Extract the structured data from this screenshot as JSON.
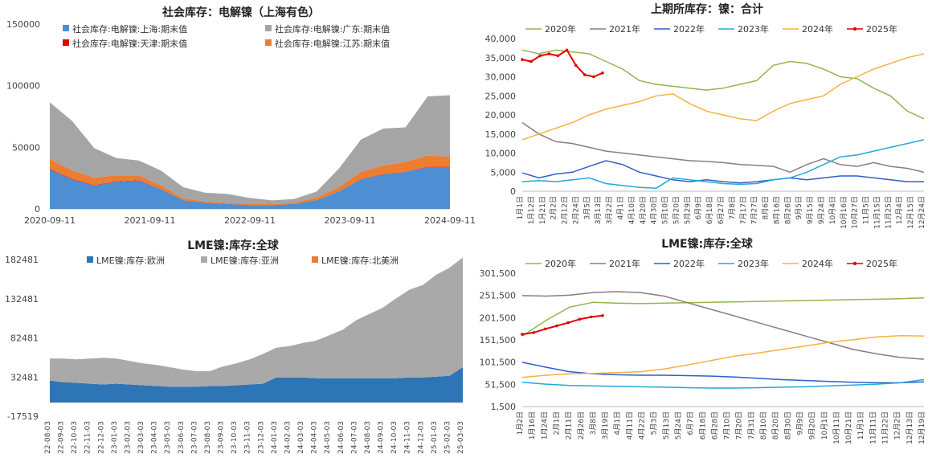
{
  "chart_data": [
    {
      "id": "c1",
      "type": "area",
      "stacked": true,
      "title": "社会库存：电解镍（上海有色）",
      "yticks": [
        "0",
        "50000",
        "100000",
        "150000"
      ],
      "xticks": [
        "2020-09-11",
        "2021-09-11",
        "2022-09-11",
        "2023-09-11",
        "2024-09-11"
      ],
      "ylim": [
        0,
        150000
      ],
      "x": [
        "2020-09",
        "2020-12",
        "2021-03",
        "2021-06",
        "2021-09",
        "2021-12",
        "2022-03",
        "2022-06",
        "2022-09",
        "2022-12",
        "2023-03",
        "2023-06",
        "2023-09",
        "2023-12",
        "2024-03",
        "2024-06",
        "2024-09",
        "2024-12",
        "2025-02"
      ],
      "series": [
        {
          "name": "社会库存:电解镍:上海:期末值",
          "color": "#4e8fd4",
          "values": [
            32000,
            24000,
            19000,
            22000,
            23000,
            16000,
            7000,
            5000,
            4000,
            3000,
            3000,
            4000,
            7000,
            14000,
            24000,
            28000,
            30000,
            34000,
            34000
          ]
        },
        {
          "name": "社会库存:电解镍:天津:期末值",
          "color": "#e00000",
          "values": [
            500,
            400,
            300,
            300,
            300,
            200,
            100,
            100,
            100,
            100,
            100,
            100,
            100,
            100,
            200,
            200,
            200,
            300,
            300
          ]
        },
        {
          "name": "社会库存:电解镍:江苏:期末值",
          "color": "#ed7d31",
          "values": [
            8000,
            7000,
            6000,
            5000,
            4000,
            3000,
            1500,
            1000,
            1000,
            800,
            800,
            1000,
            2000,
            3500,
            6000,
            7000,
            8000,
            9000,
            8000
          ]
        },
        {
          "name": "社会库存:电解镍:广东:期末值",
          "color": "#a5a5a5",
          "values": [
            46000,
            40000,
            24000,
            14000,
            12000,
            12000,
            9000,
            7000,
            7000,
            5000,
            3000,
            3000,
            5000,
            15000,
            26000,
            30000,
            28000,
            48000,
            50000
          ]
        }
      ]
    },
    {
      "id": "c2",
      "type": "line",
      "title": "上期所库存：镍：合计",
      "yticks": [
        "0",
        "5,000",
        "10,000",
        "15,000",
        "20,000",
        "25,000",
        "30,000",
        "35,000",
        "40,000"
      ],
      "ylim": [
        0,
        40000
      ],
      "xticks": [
        "1月1日",
        "1月12日",
        "1月21日",
        "2月2日",
        "2月12日",
        "2月24日",
        "3月5日",
        "3月13日",
        "3月22日",
        "4月1日",
        "4月10日",
        "4月20日",
        "4月30日",
        "5月10日",
        "5月20日",
        "5月29日",
        "6月9日",
        "6月18日",
        "6月27日",
        "7月8日",
        "7月17日",
        "7月27日",
        "8月6日",
        "8月16日",
        "8月26日",
        "9月5日",
        "9月15日",
        "9月24日",
        "10月4日",
        "10月16日",
        "10月27日",
        "11月5日",
        "11月15日",
        "11月25日",
        "12月4日",
        "12月15日",
        "12月24日"
      ],
      "series": [
        {
          "name": "2020年",
          "color": "#92b64b",
          "values": [
            37000,
            36000,
            37000,
            36500,
            36000,
            34000,
            32000,
            29000,
            28000,
            27500,
            27000,
            26500,
            27000,
            28000,
            29000,
            33000,
            34000,
            33500,
            32000,
            30000,
            29500,
            27000,
            25000,
            21000,
            19000
          ]
        },
        {
          "name": "2021年",
          "color": "#8c7b82",
          "values": [
            18000,
            15000,
            13000,
            12500,
            11500,
            10500,
            10000,
            9500,
            9000,
            8500,
            8000,
            7800,
            7500,
            7000,
            6800,
            6500,
            5000,
            7000,
            8500,
            7000,
            6500,
            7500,
            6500,
            6000,
            5000
          ]
        },
        {
          "name": "2022年",
          "color": "#2f5fc7",
          "values": [
            4800,
            3500,
            4500,
            5000,
            6500,
            8000,
            7000,
            5000,
            4000,
            3000,
            2500,
            3000,
            2500,
            2200,
            2500,
            3000,
            3500,
            3000,
            3500,
            4000,
            4000,
            3500,
            3000,
            2500,
            2500
          ]
        },
        {
          "name": "2023年",
          "color": "#22a9da",
          "values": [
            2500,
            2800,
            2500,
            3000,
            3500,
            2000,
            1500,
            1000,
            800,
            3500,
            3000,
            2500,
            2000,
            1800,
            2000,
            3000,
            3500,
            5000,
            7000,
            9000,
            9500,
            10500,
            11500,
            12500,
            13500
          ]
        },
        {
          "name": "2024年",
          "color": "#f5b13e",
          "values": [
            13500,
            15000,
            16500,
            18000,
            20000,
            21500,
            22500,
            23500,
            25000,
            25500,
            23000,
            21000,
            20000,
            19000,
            18500,
            21000,
            23000,
            24000,
            25000,
            28000,
            30000,
            32000,
            33500,
            35000,
            36000
          ]
        },
        {
          "name": "2025年",
          "color": "#e00000",
          "values": [
            34500,
            34000,
            35500,
            36000,
            35500,
            37000,
            33000,
            30500,
            30000,
            31000
          ]
        }
      ]
    },
    {
      "id": "c3",
      "type": "area",
      "stacked": true,
      "title": "LME镍:库存:全球",
      "yticks": [
        "-17519",
        "32481",
        "82481",
        "132481",
        "182481"
      ],
      "ylim": [
        -17519,
        182481
      ],
      "xticks": [
        "22-08-03",
        "22-09-03",
        "22-10-03",
        "22-11-03",
        "22-12-03",
        "23-01-03",
        "23-02-03",
        "23-03-03",
        "23-04-03",
        "23-05-03",
        "23-06-03",
        "23-07-03",
        "23-08-03",
        "23-09-03",
        "23-10-03",
        "23-11-03",
        "23-12-03",
        "24-01-03",
        "24-02-03",
        "24-03-03",
        "24-04-03",
        "24-05-03",
        "24-06-03",
        "24-07-03",
        "24-08-03",
        "24-09-03",
        "24-10-03",
        "24-11-03",
        "24-12-03",
        "25-01-03",
        "25-02-03",
        "25-03-03"
      ],
      "series": [
        {
          "name": "LME镍:库存:欧洲",
          "color": "#2e75b6",
          "values": [
            28000,
            26000,
            25000,
            24000,
            23000,
            24000,
            23000,
            22000,
            21000,
            20000,
            20000,
            20000,
            21000,
            21000,
            22000,
            23000,
            24000,
            32000,
            32000,
            32000,
            31000,
            31000,
            31000,
            31000,
            31000,
            31000,
            31000,
            32000,
            32000,
            33000,
            34000,
            45000
          ]
        },
        {
          "name": "LME镍:库存:亚洲",
          "color": "#a9a9a9",
          "values": [
            28000,
            30000,
            30000,
            32000,
            34000,
            32000,
            30000,
            28000,
            27000,
            25000,
            22000,
            20000,
            19000,
            25000,
            28000,
            32000,
            38000,
            38000,
            40000,
            44000,
            48000,
            55000,
            62000,
            74000,
            82000,
            90000,
            102000,
            112000,
            118000,
            130000,
            138000,
            140000
          ]
        },
        {
          "name": "LME镍:库存:北美洲",
          "color": "#ed7d31",
          "values": [
            0,
            0,
            0,
            0,
            0,
            0,
            0,
            0,
            0,
            0,
            0,
            0,
            0,
            0,
            0,
            0,
            0,
            0,
            0,
            0,
            0,
            0,
            0,
            0,
            0,
            0,
            0,
            0,
            0,
            0,
            0,
            0
          ]
        }
      ]
    },
    {
      "id": "c4",
      "type": "line",
      "title": "LME镍:库存:全球",
      "yticks": [
        "1,500",
        "51,500",
        "101,500",
        "151,500",
        "201,500",
        "251,500",
        "301,500"
      ],
      "ylim": [
        1500,
        301500
      ],
      "xticks": [
        "1月2日",
        "1月16日",
        "1月24日",
        "2月1日",
        "2月11日",
        "2月26日",
        "3月8日",
        "3月19日",
        "4月1日",
        "4月11日",
        "4月22日",
        "5月3日",
        "5月13日",
        "5月24日",
        "6月7日",
        "6月18日",
        "6月28日",
        "7月10日",
        "7月20日",
        "7月31日",
        "8月10日",
        "8月20日",
        "8月30日",
        "9月9日",
        "9月20日",
        "10月1日",
        "10月11日",
        "10月21日",
        "11月1日",
        "11月11日",
        "11月22日",
        "12月2日",
        "12月13日",
        "12月19日"
      ],
      "series": [
        {
          "name": "2020年",
          "color": "#92b64b",
          "values": [
            160000,
            195000,
            225000,
            236000,
            234000,
            233000,
            234000,
            235000,
            236000,
            237000,
            238000,
            239000,
            240000,
            241000,
            242000,
            243000,
            244000,
            246000
          ]
        },
        {
          "name": "2021年",
          "color": "#8c7b82",
          "values": [
            251000,
            250000,
            252000,
            258000,
            260000,
            258000,
            250000,
            235000,
            220000,
            205000,
            190000,
            175000,
            160000,
            145000,
            130000,
            120000,
            112000,
            108000
          ]
        },
        {
          "name": "2022年",
          "color": "#2f5fc7",
          "values": [
            101000,
            90000,
            80000,
            75000,
            73000,
            72000,
            72000,
            71000,
            70000,
            68000,
            65000,
            62000,
            60000,
            58000,
            56000,
            55000,
            55000,
            57000
          ]
        },
        {
          "name": "2023年",
          "color": "#22a9da",
          "values": [
            56000,
            52000,
            49000,
            48000,
            47000,
            46000,
            45000,
            44000,
            43000,
            43000,
            44000,
            45000,
            46000,
            48000,
            50000,
            52000,
            55000,
            62000
          ]
        },
        {
          "name": "2024年",
          "color": "#f5b13e",
          "values": [
            67000,
            72000,
            75000,
            76000,
            78000,
            80000,
            86000,
            95000,
            105000,
            115000,
            122000,
            130000,
            138000,
            146000,
            152000,
            158000,
            161000,
            160000
          ]
        },
        {
          "name": "2025年",
          "color": "#e00000",
          "values": [
            164000,
            168000,
            176000,
            183000,
            190000,
            198000,
            203000,
            206000
          ]
        }
      ]
    }
  ]
}
